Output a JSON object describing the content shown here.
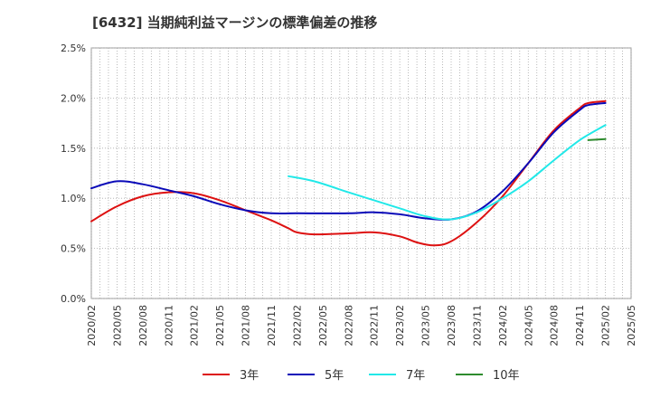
{
  "chart_data": {
    "type": "line",
    "title": "[6432]  当期純利益マージンの標準偏差の推移",
    "xlabel": "",
    "ylabel": "",
    "ylim": [
      0,
      2.5
    ],
    "yticks": [
      {
        "value": 0.0,
        "label": "0.0%"
      },
      {
        "value": 0.5,
        "label": "0.5%"
      },
      {
        "value": 1.0,
        "label": "1.0%"
      },
      {
        "value": 1.5,
        "label": "1.5%"
      },
      {
        "value": 2.0,
        "label": "2.0%"
      },
      {
        "value": 2.5,
        "label": "2.5%"
      }
    ],
    "xticks": [
      "2020/02",
      "2020/05",
      "2020/08",
      "2020/11",
      "2021/02",
      "2021/05",
      "2021/08",
      "2021/11",
      "2022/02",
      "2022/05",
      "2022/08",
      "2022/11",
      "2023/02",
      "2023/05",
      "2023/08",
      "2023/11",
      "2024/02",
      "2024/05",
      "2024/08",
      "2024/11",
      "2025/02",
      "2025/05"
    ],
    "grid": true,
    "legend_position": "bottom",
    "series": [
      {
        "name": "3年",
        "color": "#dd1111",
        "points": [
          [
            "2020/02",
            0.77
          ],
          [
            "2020/05",
            0.92
          ],
          [
            "2020/08",
            1.02
          ],
          [
            "2020/11",
            1.06
          ],
          [
            "2021/02",
            1.05
          ],
          [
            "2021/05",
            0.98
          ],
          [
            "2021/08",
            0.88
          ],
          [
            "2021/11",
            0.78
          ],
          [
            "2022/01",
            0.7
          ],
          [
            "2022/02",
            0.66
          ],
          [
            "2022/04",
            0.64
          ],
          [
            "2022/08",
            0.65
          ],
          [
            "2022/11",
            0.66
          ],
          [
            "2023/02",
            0.62
          ],
          [
            "2023/04",
            0.56
          ],
          [
            "2023/06",
            0.53
          ],
          [
            "2023/08",
            0.57
          ],
          [
            "2023/11",
            0.76
          ],
          [
            "2024/02",
            1.02
          ],
          [
            "2024/05",
            1.35
          ],
          [
            "2024/08",
            1.68
          ],
          [
            "2024/11",
            1.9
          ],
          [
            "2024/12",
            1.95
          ],
          [
            "2025/02",
            1.97
          ]
        ]
      },
      {
        "name": "5年",
        "color": "#0a0ab8",
        "points": [
          [
            "2020/02",
            1.1
          ],
          [
            "2020/05",
            1.17
          ],
          [
            "2020/08",
            1.14
          ],
          [
            "2020/11",
            1.08
          ],
          [
            "2021/02",
            1.02
          ],
          [
            "2021/05",
            0.94
          ],
          [
            "2021/08",
            0.88
          ],
          [
            "2021/11",
            0.85
          ],
          [
            "2022/02",
            0.85
          ],
          [
            "2022/08",
            0.85
          ],
          [
            "2022/11",
            0.86
          ],
          [
            "2023/02",
            0.84
          ],
          [
            "2023/05",
            0.8
          ],
          [
            "2023/08",
            0.79
          ],
          [
            "2023/11",
            0.87
          ],
          [
            "2024/02",
            1.07
          ],
          [
            "2024/05",
            1.35
          ],
          [
            "2024/08",
            1.66
          ],
          [
            "2024/11",
            1.88
          ],
          [
            "2024/12",
            1.93
          ],
          [
            "2025/02",
            1.95
          ]
        ]
      },
      {
        "name": "7年",
        "color": "#22e8e8",
        "points": [
          [
            "2022/01",
            1.22
          ],
          [
            "2022/04",
            1.17
          ],
          [
            "2022/08",
            1.06
          ],
          [
            "2022/11",
            0.98
          ],
          [
            "2023/02",
            0.9
          ],
          [
            "2023/05",
            0.82
          ],
          [
            "2023/08",
            0.79
          ],
          [
            "2023/11",
            0.86
          ],
          [
            "2024/02",
            1.0
          ],
          [
            "2024/05",
            1.17
          ],
          [
            "2024/08",
            1.38
          ],
          [
            "2024/11",
            1.58
          ],
          [
            "2025/02",
            1.73
          ]
        ]
      },
      {
        "name": "10年",
        "color": "#2e8b2e",
        "points": [
          [
            "2024/12",
            1.58
          ],
          [
            "2025/02",
            1.59
          ]
        ]
      }
    ]
  }
}
